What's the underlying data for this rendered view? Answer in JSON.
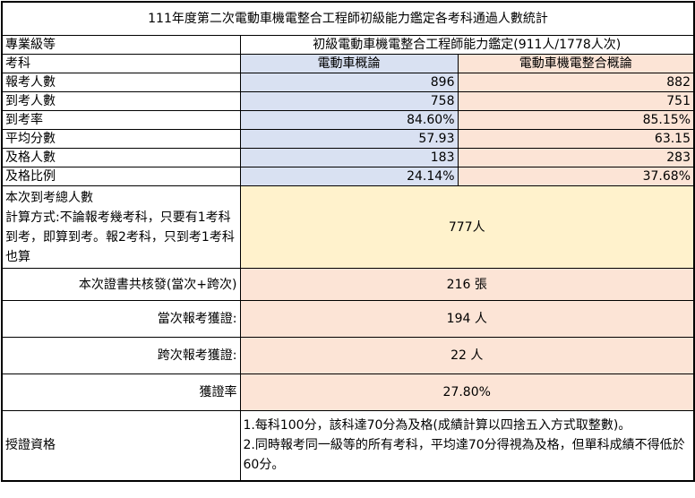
{
  "title": "111年度第二次電動車機電整合工程師初級能力鑑定各考科通過人數統計",
  "level_label": "專業級等",
  "level_value": "初級電動車機電整合工程師能力鑑定(911人/1778人次)",
  "subject_label": "考科",
  "subjects": [
    "電動車概論",
    "電動車機電整合概論"
  ],
  "rows": [
    {
      "label": "報考人數",
      "values": [
        "896",
        "882"
      ]
    },
    {
      "label": "到考人數",
      "values": [
        "758",
        "751"
      ]
    },
    {
      "label": "到考率",
      "values": [
        "84.60%",
        "85.15%"
      ]
    },
    {
      "label": "平均分數",
      "values": [
        "57.93",
        "63.15"
      ]
    },
    {
      "label": "及格人數",
      "values": [
        "183",
        "283"
      ]
    },
    {
      "label": "及格比例",
      "values": [
        "24.14%",
        "37.68%"
      ]
    }
  ],
  "total_attendance": {
    "label": "本次到考總人數",
    "note": "計算方式:不論報考幾考科，只要有1考科到考，即算到考。報2考科，只到考1考科也算",
    "value": "777人"
  },
  "summary": [
    {
      "label": "本次證書共核發(當次+跨次)",
      "value": "216 張"
    },
    {
      "label": "當次報考獲證:",
      "value": "194 人"
    },
    {
      "label": "跨次報考獲證:",
      "value": "22 人"
    },
    {
      "label": "獲證率",
      "value": "27.80%"
    }
  ],
  "qualification": {
    "label": "授證資格",
    "lines": [
      "1.每科100分，該科達70分為及格(成績計算以四捨五入方式取整數)。",
      "2.同時報考同一級等的所有考科，平均達70分得視為及格，但單科成績不得低於60分。"
    ]
  },
  "colors": {
    "subject1": "#d9e1f2",
    "subject2": "#fce4d6",
    "total": "#fff2cc"
  }
}
